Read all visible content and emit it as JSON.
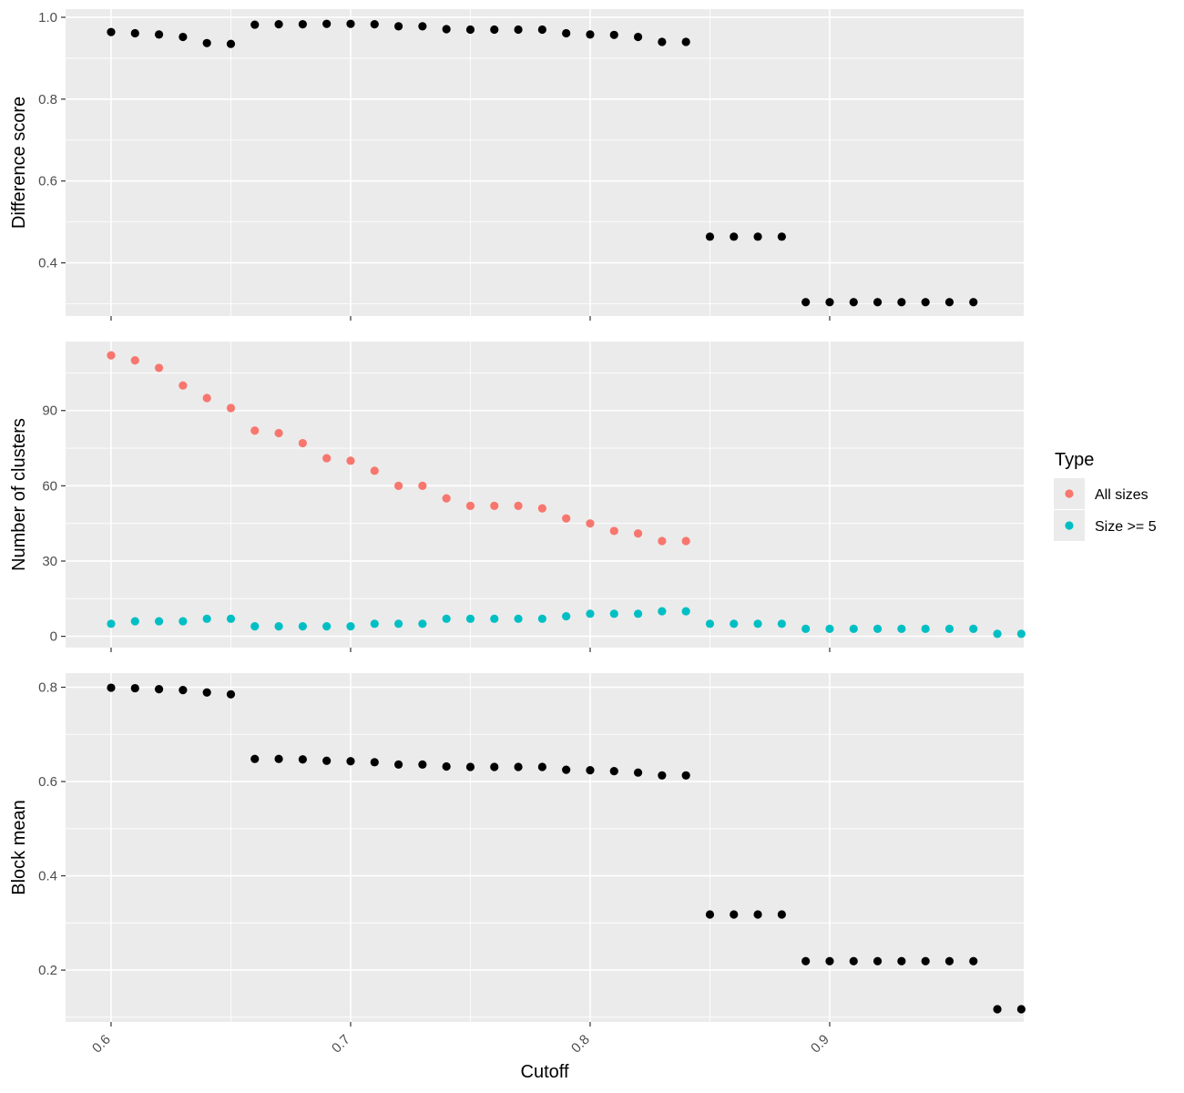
{
  "chart_data": {
    "type": "scatter",
    "xlabel": "Cutoff",
    "x_ticks": [
      "0.6",
      "0.7",
      "0.8",
      "0.9"
    ],
    "xlim": [
      0.581,
      0.981
    ],
    "legend": {
      "title": "Type",
      "placement": "right",
      "entries": [
        {
          "label": "All sizes",
          "color": "#F8766D"
        },
        {
          "label": "Size >= 5",
          "color": "#00BFC4"
        }
      ]
    },
    "panels": [
      {
        "ylabel": "Difference score",
        "ylim": [
          0.27,
          1.02
        ],
        "y_ticks": [
          "0.4",
          "0.6",
          "0.8",
          "1.0"
        ],
        "series": [
          {
            "color": "#000000",
            "x": [
              0.6,
              0.61,
              0.62,
              0.63,
              0.64,
              0.65,
              0.66,
              0.67,
              0.68,
              0.69,
              0.7,
              0.71,
              0.72,
              0.73,
              0.74,
              0.75,
              0.76,
              0.77,
              0.78,
              0.79,
              0.8,
              0.81,
              0.82,
              0.83,
              0.84,
              0.85,
              0.86,
              0.87,
              0.88,
              0.89,
              0.9,
              0.91,
              0.92,
              0.93,
              0.94,
              0.95,
              0.96
            ],
            "y": [
              0.964,
              0.961,
              0.958,
              0.952,
              0.937,
              0.935,
              0.982,
              0.983,
              0.983,
              0.984,
              0.984,
              0.983,
              0.978,
              0.978,
              0.971,
              0.97,
              0.97,
              0.97,
              0.97,
              0.961,
              0.958,
              0.957,
              0.952,
              0.94,
              0.94,
              0.464,
              0.464,
              0.464,
              0.464,
              0.304,
              0.304,
              0.304,
              0.304,
              0.304,
              0.304,
              0.304,
              0.304
            ]
          }
        ]
      },
      {
        "ylabel": "Number of clusters",
        "ylim": [
          -4.5,
          117.5
        ],
        "y_ticks": [
          "0",
          "30",
          "60",
          "90"
        ],
        "series": [
          {
            "name": "All sizes",
            "color": "#F8766D",
            "x": [
              0.6,
              0.61,
              0.62,
              0.63,
              0.64,
              0.65,
              0.66,
              0.67,
              0.68,
              0.69,
              0.7,
              0.71,
              0.72,
              0.73,
              0.74,
              0.75,
              0.76,
              0.77,
              0.78,
              0.79,
              0.8,
              0.81,
              0.82,
              0.83,
              0.84
            ],
            "y": [
              112,
              110,
              107,
              100,
              95,
              91,
              82,
              81,
              77,
              71,
              70,
              66,
              60,
              60,
              55,
              52,
              52,
              52,
              51,
              47,
              45,
              42,
              41,
              38,
              38
            ]
          },
          {
            "name": "Size >= 5",
            "color": "#00BFC4",
            "x": [
              0.6,
              0.61,
              0.62,
              0.63,
              0.64,
              0.65,
              0.66,
              0.67,
              0.68,
              0.69,
              0.7,
              0.71,
              0.72,
              0.73,
              0.74,
              0.75,
              0.76,
              0.77,
              0.78,
              0.79,
              0.8,
              0.81,
              0.82,
              0.83,
              0.84,
              0.85,
              0.86,
              0.87,
              0.88,
              0.89,
              0.9,
              0.91,
              0.92,
              0.93,
              0.94,
              0.95,
              0.96,
              0.97,
              0.98
            ],
            "y": [
              5,
              6,
              6,
              6,
              7,
              7,
              4,
              4,
              4,
              4,
              4,
              5,
              5,
              5,
              7,
              7,
              7,
              7,
              7,
              8,
              9,
              9,
              9,
              10,
              10,
              5,
              5,
              5,
              5,
              3,
              3,
              3,
              3,
              3,
              3,
              3,
              3,
              1,
              1
            ]
          }
        ]
      },
      {
        "ylabel": "Block mean",
        "ylim": [
          0.09,
          0.83
        ],
        "y_ticks": [
          "0.2",
          "0.4",
          "0.6",
          "0.8"
        ],
        "series": [
          {
            "color": "#000000",
            "x": [
              0.6,
              0.61,
              0.62,
              0.63,
              0.64,
              0.65,
              0.66,
              0.67,
              0.68,
              0.69,
              0.7,
              0.71,
              0.72,
              0.73,
              0.74,
              0.75,
              0.76,
              0.77,
              0.78,
              0.79,
              0.8,
              0.81,
              0.82,
              0.83,
              0.84,
              0.85,
              0.86,
              0.87,
              0.88,
              0.89,
              0.9,
              0.91,
              0.92,
              0.93,
              0.94,
              0.95,
              0.96,
              0.97,
              0.98
            ],
            "y": [
              0.799,
              0.798,
              0.796,
              0.794,
              0.789,
              0.785,
              0.648,
              0.648,
              0.647,
              0.644,
              0.643,
              0.641,
              0.636,
              0.636,
              0.632,
              0.631,
              0.631,
              0.631,
              0.631,
              0.625,
              0.624,
              0.622,
              0.619,
              0.613,
              0.613,
              0.318,
              0.318,
              0.318,
              0.318,
              0.219,
              0.219,
              0.219,
              0.219,
              0.219,
              0.219,
              0.219,
              0.219,
              0.117,
              0.117
            ]
          }
        ]
      }
    ]
  }
}
